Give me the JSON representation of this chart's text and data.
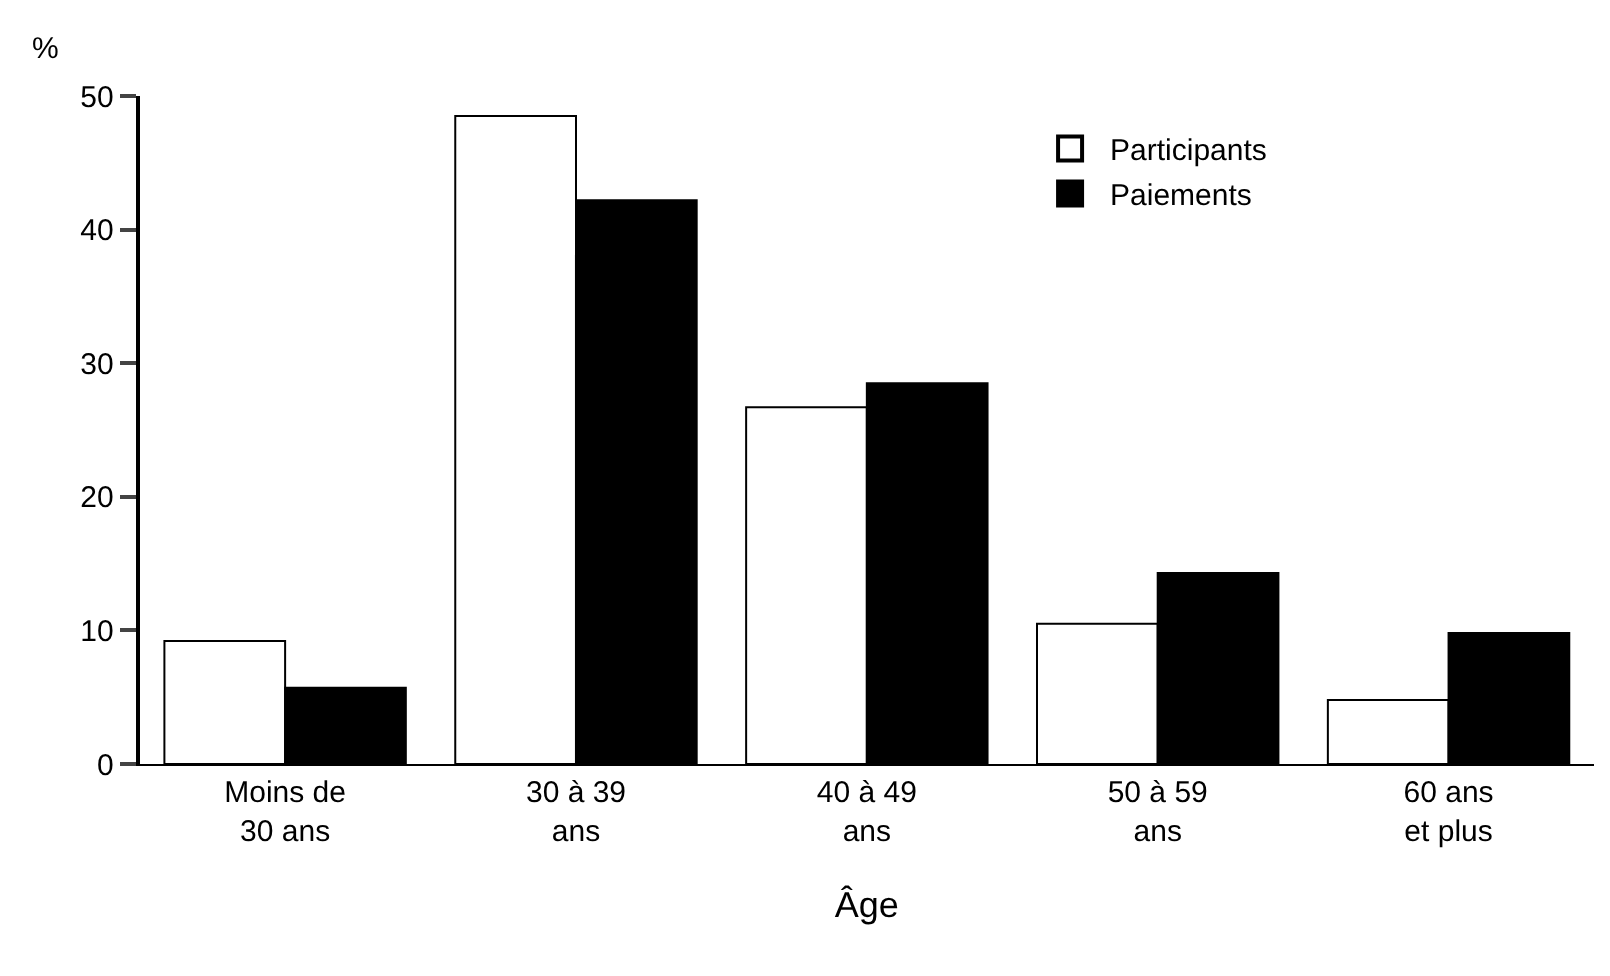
{
  "chart_data": {
    "type": "bar",
    "xlabel": "Âge",
    "ylabel": "%",
    "categories": [
      "Moins de\n30 ans",
      "30 à 39\nans",
      "40 à 49\nans",
      "50 à 59\nans",
      "60 ans\net plus"
    ],
    "series": [
      {
        "name": "Participants",
        "color": "#ffffff",
        "values": [
          9.2,
          48.5,
          26.7,
          10.5,
          4.8
        ]
      },
      {
        "name": "Paiements",
        "color": "#000000",
        "values": [
          5.7,
          42.2,
          28.5,
          14.3,
          9.8
        ]
      }
    ],
    "ylim": [
      0,
      50
    ],
    "yticks": [
      0,
      10,
      20,
      30,
      40,
      50
    ],
    "legend": "top right"
  }
}
